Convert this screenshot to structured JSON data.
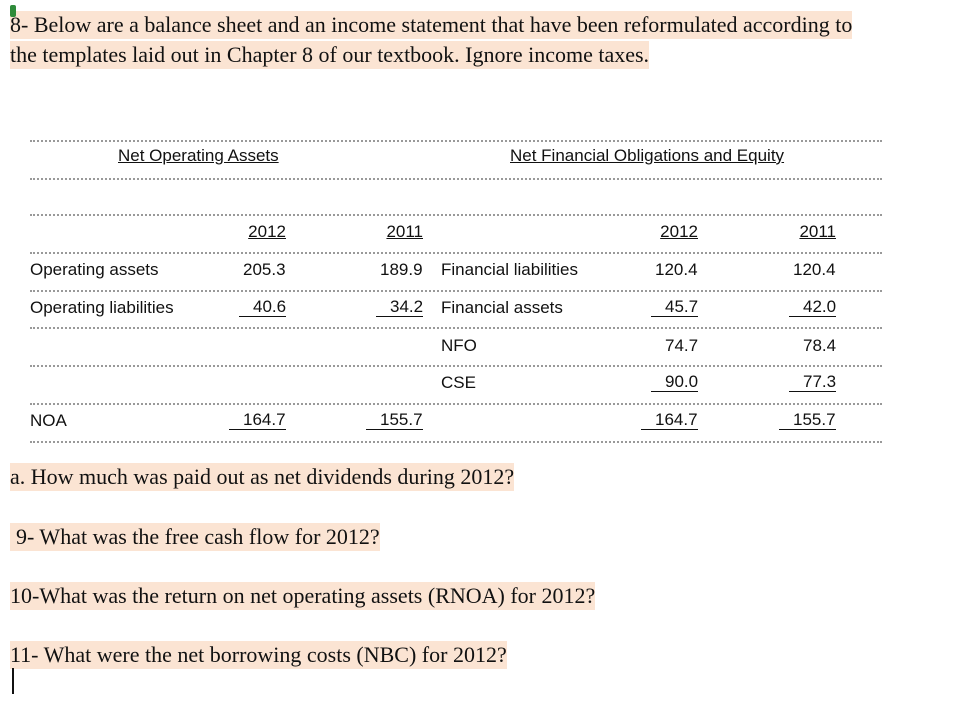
{
  "intro": {
    "lines": [
      "8- Below are a balance sheet and an income statement that have been reformulated according to",
      "the templates laid out in Chapter 8 of our textbook. Ignore income taxes."
    ]
  },
  "table": {
    "headers": [
      "Net Operating Assets",
      "Net Financial Obligations and Equity"
    ],
    "years": [
      "2012",
      "2011",
      "2012",
      "2011"
    ],
    "rows": [
      {
        "left": {
          "label": "Operating assets",
          "values": [
            "205.3",
            "189.9"
          ]
        },
        "right": {
          "label": "Financial liabilities",
          "values": [
            "120.4",
            "120.4"
          ]
        }
      },
      {
        "underline": true,
        "left": {
          "label": "Operating liabilities",
          "values": [
            "40.6",
            "34.2"
          ]
        },
        "right": {
          "label": "Financial assets",
          "values": [
            "45.7",
            "42.0"
          ]
        }
      },
      {
        "right": {
          "label": "NFO",
          "values": [
            "74.7",
            "78.4"
          ]
        }
      },
      {
        "underline": true,
        "right": {
          "label": "CSE",
          "values": [
            "90.0",
            "77.3"
          ]
        }
      },
      {
        "underline": true,
        "left": {
          "label": "NOA",
          "values": [
            "164.7",
            "155.7"
          ]
        },
        "right": {
          "values": [
            "164.7",
            "155.7"
          ]
        }
      }
    ]
  },
  "questions": [
    "a. How much was paid out as net dividends during 2012?",
    "9- What was the free cash flow for 2012?",
    "10-What was the return on net operating assets (RNOA) for 2012?",
    "11- What were the net borrowing costs (NBC) for 2012?"
  ]
}
